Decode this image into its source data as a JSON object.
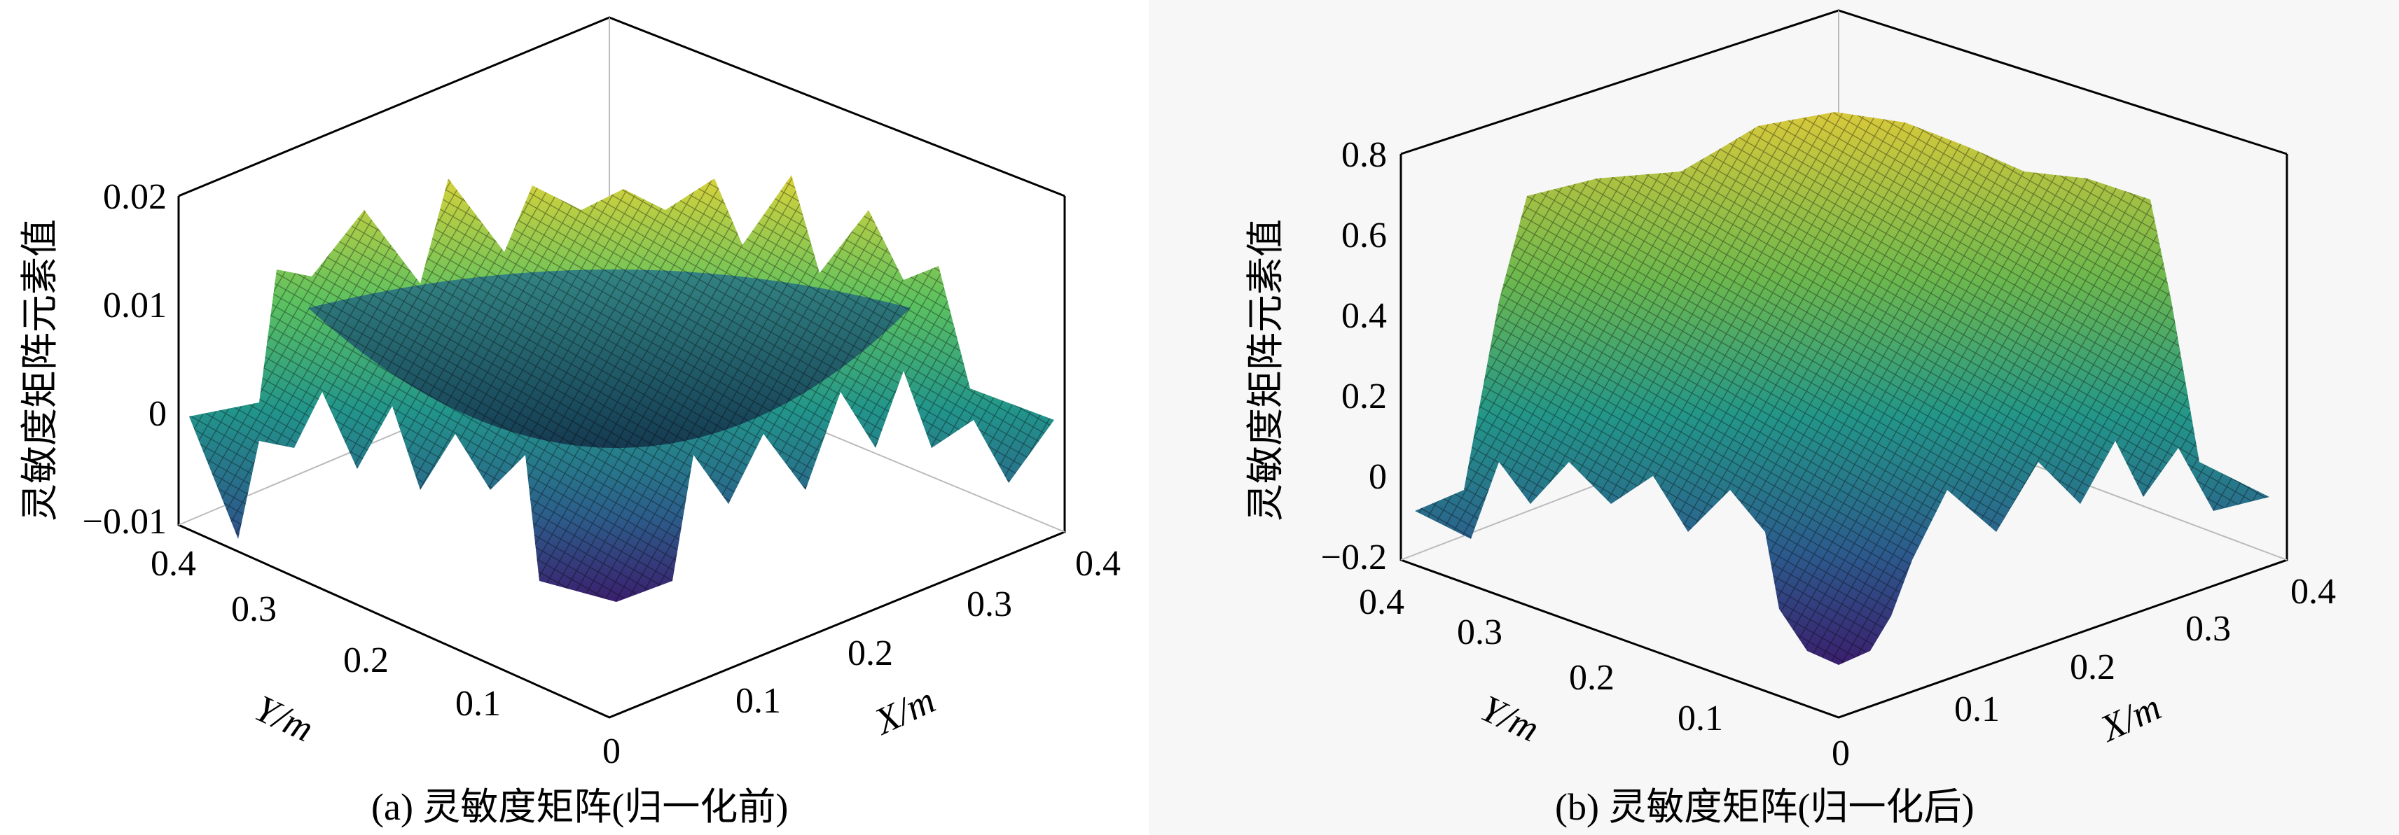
{
  "chart_data": [
    {
      "type": "surface3d",
      "caption": "(a) 灵敏度矩阵(归一化前)",
      "zlabel": "灵敏度矩阵元素值",
      "xlabel": "X/m",
      "ylabel": "Y/m",
      "xticks": [
        "0.1",
        "0.2",
        "0.3",
        "0.4"
      ],
      "yticks": [
        "0",
        "0.1",
        "0.2",
        "0.3",
        "0.4"
      ],
      "zticks": [
        "0.02",
        "0.01",
        "0",
        "−0.01"
      ],
      "zlim": [
        -0.01,
        0.02
      ],
      "xlim": [
        0,
        0.4
      ],
      "ylim": [
        0,
        0.4
      ],
      "surface": "central bowl ringed by ~12 peaks (~0.015–0.02), deep troughs near edges (~-0.01)",
      "colormap": [
        "#3b1f6e",
        "#2c5d8a",
        "#22958b",
        "#5bc160",
        "#d9d23a"
      ]
    },
    {
      "type": "surface3d",
      "caption": "(b) 灵敏度矩阵(归一化后)",
      "zlabel": "灵敏度矩阵元素值",
      "xlabel": "X/m",
      "ylabel": "Y/m",
      "xticks": [
        "0.1",
        "0.2",
        "0.3",
        "0.4"
      ],
      "yticks": [
        "0",
        "0.1",
        "0.2",
        "0.3",
        "0.4"
      ],
      "zticks": [
        "0.8",
        "0.6",
        "0.4",
        "0.2",
        "0",
        "−0.2"
      ],
      "zlim": [
        -0.2,
        0.8
      ],
      "xlim": [
        0,
        0.4
      ],
      "ylim": [
        0,
        0.4
      ],
      "surface": "flattened plateau ~0.6–0.8 with ~12 lobes hanging down to ~-0.2",
      "colormap": [
        "#3b1f6e",
        "#2c5d8a",
        "#22958b",
        "#5bc160",
        "#d9d23a"
      ]
    }
  ]
}
